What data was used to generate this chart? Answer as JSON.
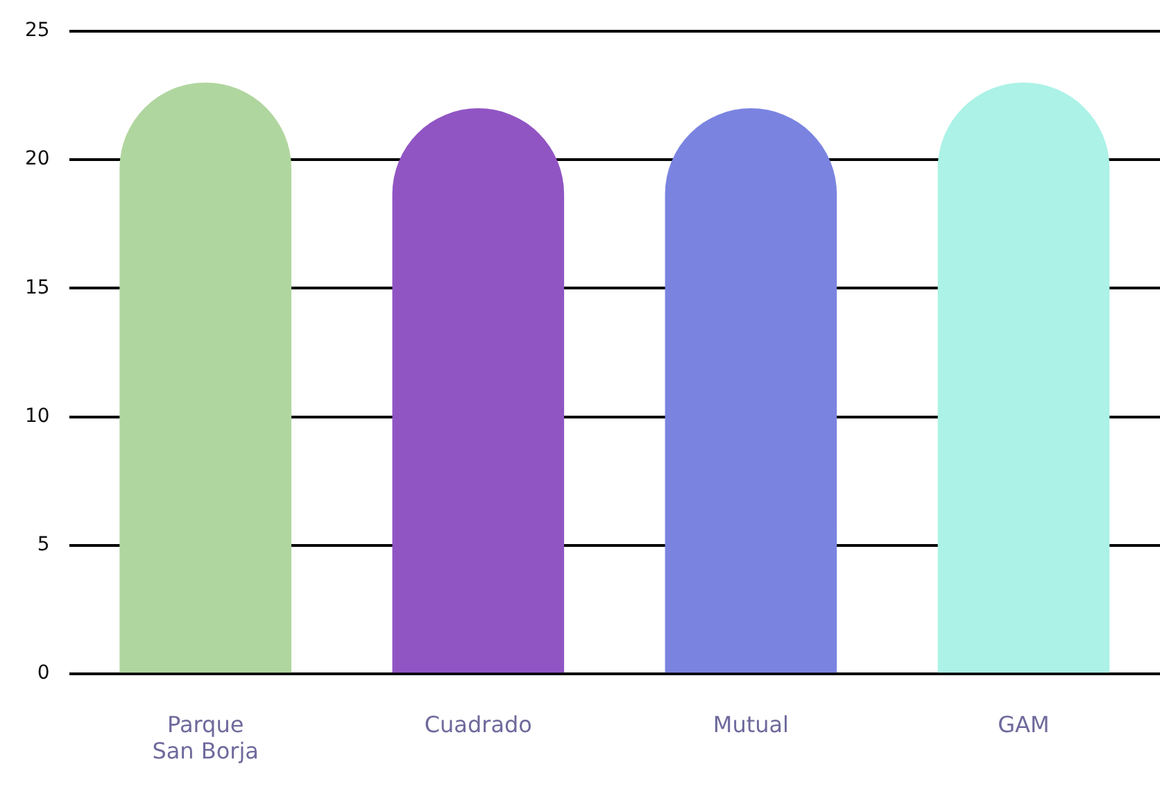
{
  "chart_data": {
    "type": "bar",
    "categories": [
      "Parque San Borja",
      "Cuadrado",
      "Mutual",
      "GAM"
    ],
    "values": [
      23,
      22,
      22,
      23
    ],
    "colors": [
      "#b0d69f",
      "#9155c3",
      "#7a84e0",
      "#acf2e6"
    ],
    "ylim": [
      0,
      25
    ],
    "yticks": [
      0,
      5,
      10,
      15,
      20,
      25
    ],
    "grid": "y",
    "legend": false
  }
}
